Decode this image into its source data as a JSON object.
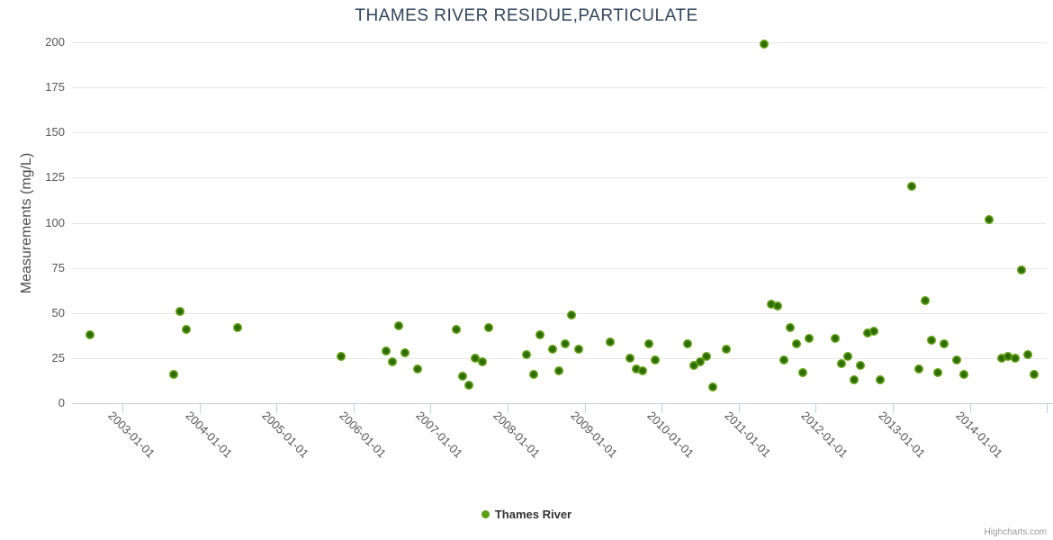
{
  "credits": "Highcharts.com",
  "chart_data": {
    "type": "scatter",
    "title": "THAMES RIVER RESIDUE,PARTICULATE",
    "xlabel": "",
    "ylabel": "Measurements (mg/L)",
    "ylim": [
      0,
      200
    ],
    "y_tick_interval": 25,
    "y_ticks": [
      0,
      25,
      50,
      75,
      100,
      125,
      150,
      175,
      200
    ],
    "x_ticks": [
      "2003-01-01",
      "2004-01-01",
      "2005-01-01",
      "2006-01-01",
      "2007-01-01",
      "2008-01-01",
      "2009-01-01",
      "2010-01-01",
      "2011-01-01",
      "2012-01-01",
      "2013-01-01",
      "2014-01-01"
    ],
    "grid": true,
    "legend_position": "bottom-center",
    "marker_color": "#5b9e10",
    "series": [
      {
        "name": "Thames River",
        "points": [
          [
            "2002-08",
            38
          ],
          [
            "2003-09",
            16
          ],
          [
            "2003-10",
            51
          ],
          [
            "2003-11",
            41
          ],
          [
            "2004-07",
            42
          ],
          [
            "2005-11",
            26
          ],
          [
            "2006-06",
            29
          ],
          [
            "2006-07",
            23
          ],
          [
            "2006-08",
            43
          ],
          [
            "2006-09",
            28
          ],
          [
            "2006-11",
            19
          ],
          [
            "2007-05",
            41
          ],
          [
            "2007-06",
            15
          ],
          [
            "2007-07",
            10
          ],
          [
            "2007-08",
            25
          ],
          [
            "2007-09",
            23
          ],
          [
            "2007-10",
            42
          ],
          [
            "2008-04",
            27
          ],
          [
            "2008-05",
            16
          ],
          [
            "2008-06",
            38
          ],
          [
            "2008-08",
            30
          ],
          [
            "2008-09",
            18
          ],
          [
            "2008-10",
            33
          ],
          [
            "2008-11",
            49
          ],
          [
            "2008-12",
            30
          ],
          [
            "2009-05",
            34
          ],
          [
            "2009-08",
            25
          ],
          [
            "2009-09",
            19
          ],
          [
            "2009-10",
            18
          ],
          [
            "2009-11",
            33
          ],
          [
            "2009-12",
            24
          ],
          [
            "2010-05",
            33
          ],
          [
            "2010-06",
            21
          ],
          [
            "2010-07",
            23
          ],
          [
            "2010-08",
            26
          ],
          [
            "2010-09",
            9
          ],
          [
            "2010-11",
            30
          ],
          [
            "2011-05",
            199
          ],
          [
            "2011-06",
            55
          ],
          [
            "2011-07",
            54
          ],
          [
            "2011-08",
            24
          ],
          [
            "2011-09",
            42
          ],
          [
            "2011-10",
            33
          ],
          [
            "2011-11",
            17
          ],
          [
            "2011-12",
            36
          ],
          [
            "2012-04",
            36
          ],
          [
            "2012-05",
            22
          ],
          [
            "2012-06",
            26
          ],
          [
            "2012-07",
            13
          ],
          [
            "2012-08",
            21
          ],
          [
            "2012-09",
            39
          ],
          [
            "2012-10",
            40
          ],
          [
            "2012-11",
            13
          ],
          [
            "2013-04",
            120
          ],
          [
            "2013-05",
            19
          ],
          [
            "2013-06",
            57
          ],
          [
            "2013-07",
            35
          ],
          [
            "2013-08",
            17
          ],
          [
            "2013-09",
            33
          ],
          [
            "2013-11",
            24
          ],
          [
            "2013-12",
            16
          ],
          [
            "2014-04",
            102
          ],
          [
            "2014-06",
            25
          ],
          [
            "2014-07",
            26
          ],
          [
            "2014-08",
            25
          ],
          [
            "2014-09",
            74
          ],
          [
            "2014-10",
            27
          ],
          [
            "2014-11",
            16
          ]
        ]
      }
    ]
  }
}
